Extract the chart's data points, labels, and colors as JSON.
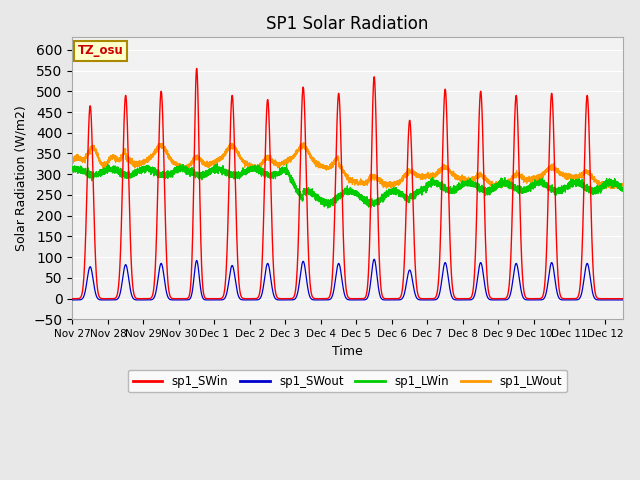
{
  "title": "SP1 Solar Radiation",
  "xlabel": "Time",
  "ylabel": "Solar Radiation (W/m2)",
  "ylim": [
    -50,
    630
  ],
  "yticks": [
    -50,
    0,
    50,
    100,
    150,
    200,
    250,
    300,
    350,
    400,
    450,
    500,
    550,
    600
  ],
  "bg_color": "#e8e8e8",
  "plot_bg": "#f2f2f2",
  "tz_label": "TZ_osu",
  "tz_fg": "#cc0000",
  "tz_bg": "#ffffcc",
  "tz_border": "#aa8800",
  "legend": [
    "sp1_SWin",
    "sp1_SWout",
    "sp1_LWin",
    "sp1_LWout"
  ],
  "legend_colors": [
    "#ff0000",
    "#0000cc",
    "#00cc00",
    "#ff9900"
  ],
  "n_days": 15.5,
  "points_per_day": 480,
  "SW_peaks": [
    465,
    490,
    500,
    555,
    490,
    480,
    510,
    495,
    535,
    430,
    505,
    500,
    490,
    495,
    490
  ],
  "SW_widths": [
    0.12,
    0.12,
    0.12,
    0.1,
    0.12,
    0.12,
    0.12,
    0.12,
    0.11,
    0.12,
    0.12,
    0.12,
    0.12,
    0.12,
    0.12
  ],
  "SWout_peaks": [
    80,
    85,
    88,
    95,
    83,
    88,
    93,
    88,
    98,
    72,
    90,
    90,
    88,
    90,
    88
  ],
  "tick_labels": [
    "Nov 27",
    "Nov 28",
    "Nov 29",
    "Nov 30",
    "Dec 1",
    "Dec 2",
    "Dec 3",
    "Dec 4",
    "Dec 5",
    "Dec 6",
    "Dec 7",
    "Dec 8",
    "Dec 9",
    "Dec 10",
    "Dec 11",
    "Dec 12"
  ]
}
